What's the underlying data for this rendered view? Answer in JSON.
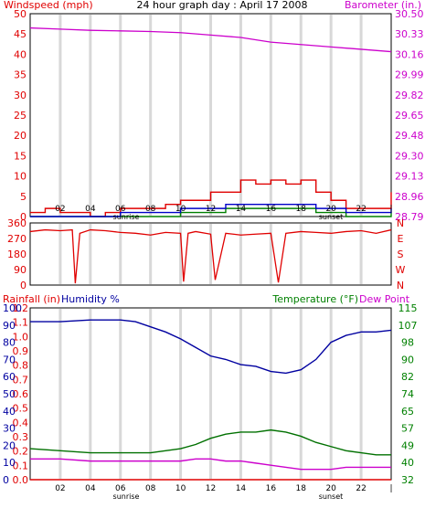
{
  "header": {
    "windspeed_label": "Windspeed (mph)",
    "title": "24 hour graph day : April 17 2008",
    "barometer_label": "Barometer (in.)"
  },
  "x_axis": {
    "hour_ticks": [
      "02",
      "04",
      "06",
      "08",
      "10",
      "12",
      "14",
      "16",
      "18",
      "20",
      "22",
      "|"
    ],
    "sunrise_label": "sunrise",
    "sunset_label": "sunset"
  },
  "bottom_header": {
    "rainfall_label": "Rainfall (in)",
    "humidity_label": "Humidity %",
    "temperature_label": "Temperature (°F)",
    "dewpoint_label": "Dew Point"
  },
  "colors": {
    "wind_gust": "#e00000",
    "wind_avg": "#0000c8",
    "wind_low": "#008000",
    "barometer": "#cc00cc",
    "humidity": "#0000a0",
    "temperature": "#007000",
    "dew_point": "#cc00cc",
    "rainfall": "#e00000",
    "grid": "#d8d8d8"
  },
  "chart_data": [
    {
      "type": "line",
      "title": "24 hour graph day : April 17 2008",
      "x_range": [
        0,
        24
      ],
      "grid": true,
      "left_axis": {
        "label": "Windspeed (mph)",
        "range": [
          0,
          50
        ],
        "ticks": [
          "0",
          "5",
          "10",
          "15",
          "20",
          "25",
          "30",
          "35",
          "40",
          "45",
          "50"
        ]
      },
      "right_axis": {
        "label": "Barometer (in.)",
        "range": [
          28.79,
          30.5
        ],
        "ticks": [
          "28.79",
          "28.96",
          "29.13",
          "29.30",
          "29.48",
          "29.65",
          "29.82",
          "29.99",
          "30.16",
          "30.33",
          "30.50"
        ]
      },
      "series": [
        {
          "name": "Barometer",
          "axis": "right",
          "x": [
            0,
            2,
            4,
            6,
            8,
            10,
            12,
            14,
            16,
            18,
            20,
            22,
            24
          ],
          "values": [
            30.38,
            30.37,
            30.36,
            30.355,
            30.35,
            30.34,
            30.32,
            30.3,
            30.26,
            30.24,
            30.22,
            30.2,
            30.18
          ]
        },
        {
          "name": "Wind gust",
          "axis": "left",
          "x": [
            0,
            1,
            2,
            3,
            4,
            5,
            6,
            7,
            8,
            9,
            10,
            11,
            12,
            13,
            14,
            15,
            16,
            17,
            18,
            19,
            20,
            21,
            22,
            23,
            24
          ],
          "values": [
            1,
            2,
            1,
            1,
            0,
            1,
            2,
            2,
            2,
            3,
            4,
            4,
            6,
            6,
            9,
            8,
            9,
            8,
            9,
            6,
            4,
            2,
            2,
            2,
            6
          ]
        },
        {
          "name": "Wind average",
          "axis": "left",
          "x": [
            0,
            1,
            2,
            3,
            4,
            5,
            6,
            7,
            8,
            9,
            10,
            11,
            12,
            13,
            14,
            15,
            16,
            17,
            18,
            19,
            20,
            21,
            22,
            23,
            24
          ],
          "values": [
            0,
            0,
            0,
            0,
            0,
            0,
            1,
            1,
            1,
            1,
            2,
            2,
            2,
            3,
            3,
            3,
            3,
            3,
            3,
            2,
            2,
            1,
            1,
            1,
            2
          ]
        },
        {
          "name": "Wind low",
          "axis": "left",
          "x": [
            0,
            1,
            2,
            3,
            4,
            5,
            6,
            7,
            8,
            9,
            10,
            11,
            12,
            13,
            14,
            15,
            16,
            17,
            18,
            19,
            20,
            21,
            22,
            23,
            24
          ],
          "values": [
            0,
            0,
            0,
            0,
            0,
            0,
            0,
            0,
            0,
            0,
            1,
            1,
            1,
            2,
            2,
            2,
            2,
            2,
            2,
            1,
            1,
            0,
            0,
            0,
            1
          ]
        }
      ]
    },
    {
      "type": "line",
      "x_range": [
        0,
        24
      ],
      "grid": true,
      "left_axis": {
        "range": [
          0,
          360
        ],
        "ticks": [
          "0",
          "90",
          "180",
          "270",
          "360"
        ]
      },
      "right_axis": {
        "ticks": [
          "N",
          "E",
          "S",
          "W",
          "N"
        ]
      },
      "series": [
        {
          "name": "Wind direction",
          "x": [
            0,
            1,
            2,
            2.8,
            3,
            3.3,
            4,
            5,
            6,
            7,
            8,
            9,
            10,
            10.2,
            10.5,
            11,
            12,
            12.3,
            13,
            14,
            15,
            16,
            16.5,
            17,
            18,
            19,
            20,
            21,
            22,
            23,
            24
          ],
          "values": [
            310,
            320,
            315,
            320,
            10,
            300,
            320,
            315,
            305,
            300,
            290,
            305,
            300,
            20,
            300,
            310,
            295,
            30,
            300,
            290,
            295,
            300,
            15,
            300,
            310,
            305,
            300,
            310,
            315,
            300,
            320
          ]
        }
      ]
    },
    {
      "type": "line",
      "x_range": [
        0,
        24
      ],
      "grid": true,
      "rainfall_axis": {
        "label": "Rainfall (in)",
        "range": [
          0,
          1.2
        ],
        "ticks": [
          "0.0",
          "0.1",
          "0.2",
          "0.3",
          "0.4",
          "0.5",
          "0.6",
          "0.7",
          "0.8",
          "0.9",
          "1.0",
          "1.1",
          "1.2"
        ]
      },
      "humidity_axis": {
        "label": "Humidity %",
        "range": [
          0,
          100
        ],
        "ticks": [
          "0",
          "10",
          "20",
          "30",
          "40",
          "50",
          "60",
          "70",
          "80",
          "90",
          "100"
        ]
      },
      "temperature_axis": {
        "label": "Temperature (°F)",
        "range": [
          32,
          115
        ],
        "ticks": [
          "32",
          "40",
          "49",
          "57",
          "65",
          "74",
          "82",
          "90",
          "98",
          "107",
          "115"
        ]
      },
      "series": [
        {
          "name": "Humidity",
          "axis": "humidity",
          "x": [
            0,
            2,
            4,
            6,
            7,
            8,
            9,
            10,
            11,
            12,
            13,
            14,
            15,
            16,
            17,
            18,
            19,
            20,
            21,
            22,
            23,
            24
          ],
          "values": [
            92,
            92,
            93,
            93,
            92,
            89,
            86,
            82,
            77,
            72,
            70,
            67,
            66,
            63,
            62,
            64,
            70,
            80,
            84,
            86,
            86,
            87
          ]
        },
        {
          "name": "Temperature",
          "axis": "temperature",
          "x": [
            0,
            2,
            4,
            6,
            8,
            10,
            11,
            12,
            13,
            14,
            15,
            16,
            17,
            18,
            19,
            20,
            21,
            22,
            23,
            24
          ],
          "values": [
            47,
            46,
            45,
            45,
            45,
            47,
            49,
            52,
            54,
            55,
            55,
            56,
            55,
            53,
            50,
            48,
            46,
            45,
            44,
            44
          ]
        },
        {
          "name": "Dew Point",
          "axis": "temperature",
          "x": [
            0,
            2,
            4,
            6,
            8,
            10,
            11,
            12,
            13,
            14,
            15,
            16,
            17,
            18,
            19,
            20,
            21,
            22,
            23,
            24
          ],
          "values": [
            42,
            42,
            41,
            41,
            41,
            41,
            42,
            42,
            41,
            41,
            40,
            39,
            38,
            37,
            37,
            37,
            38,
            38,
            38,
            38
          ]
        },
        {
          "name": "Rainfall",
          "axis": "rainfall",
          "x": [
            0,
            24
          ],
          "values": [
            0,
            0
          ]
        }
      ]
    }
  ]
}
